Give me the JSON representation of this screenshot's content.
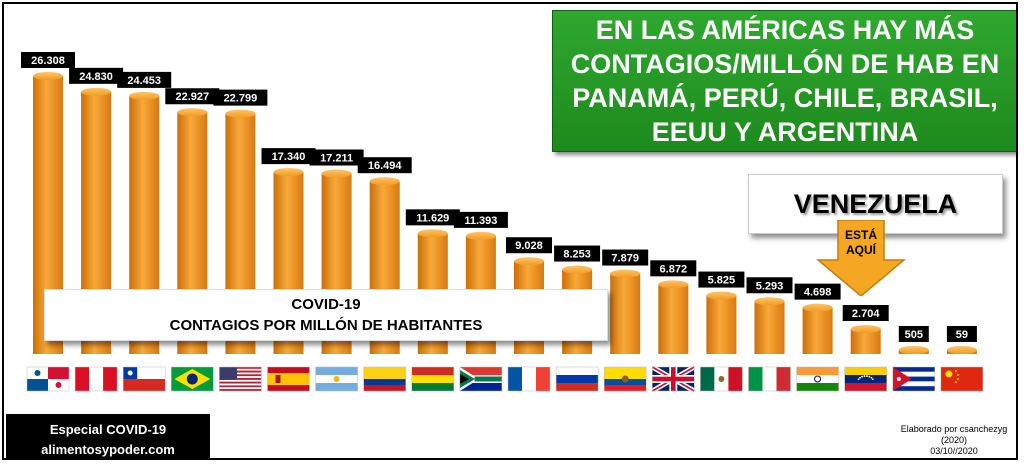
{
  "headline": "EN LAS AMÉRICAS HAY MÁS CONTAGIOS/MILLÓN DE HAB EN PANAMÁ, PERÚ, CHILE, BRASIL, EEUU Y ARGENTINA",
  "highlight_box": "VENEZUELA",
  "arrow_label_1": "ESTÁ",
  "arrow_label_2": "AQUÍ",
  "chart_label_line1": "COVID-19",
  "chart_label_line2": "CONTAGIOS POR MILLÓN DE HABITANTES",
  "promo_line1": "Especial COVID-19",
  "promo_line2": "alimentosypoder.com",
  "credit_line1": "Elaborado por csanchezyg",
  "credit_line2": "(2020)",
  "credit_line3": "03/10//2020",
  "colors": {
    "bar": "#f39c1f",
    "bar_dark": "#c96f0a",
    "label_bg": "#000000",
    "headline_bg": "#1f9a1f",
    "arrow": "#f5a623"
  },
  "chart_data": {
    "type": "bar",
    "title": "",
    "xlabel": "",
    "ylabel": "",
    "ylim": [
      0,
      28000
    ],
    "grid": false,
    "categories": [
      "Panamá",
      "Perú",
      "Chile",
      "Brasil",
      "EEUU",
      "España",
      "Argentina",
      "Colombia",
      "Bolivia",
      "Sudáfrica",
      "Francia",
      "Rusia",
      "Ecuador",
      "Reino Unido",
      "México",
      "Italia",
      "India",
      "Venezuela",
      "Cuba",
      "China"
    ],
    "values": [
      26308,
      24830,
      24453,
      22927,
      22799,
      17340,
      17211,
      16494,
      11629,
      11393,
      9028,
      8253,
      7879,
      6872,
      5825,
      5293,
      4698,
      2704,
      505,
      59
    ],
    "value_labels": [
      "26.308",
      "24.830",
      "24.453",
      "22.927",
      "22.799",
      "17.340",
      "17.211",
      "16.494",
      "11.629",
      "11.393",
      "9.028",
      "8.253",
      "7.879",
      "6.872",
      "5.825",
      "5.293",
      "4.698",
      "2.704",
      "505",
      "59"
    ]
  }
}
